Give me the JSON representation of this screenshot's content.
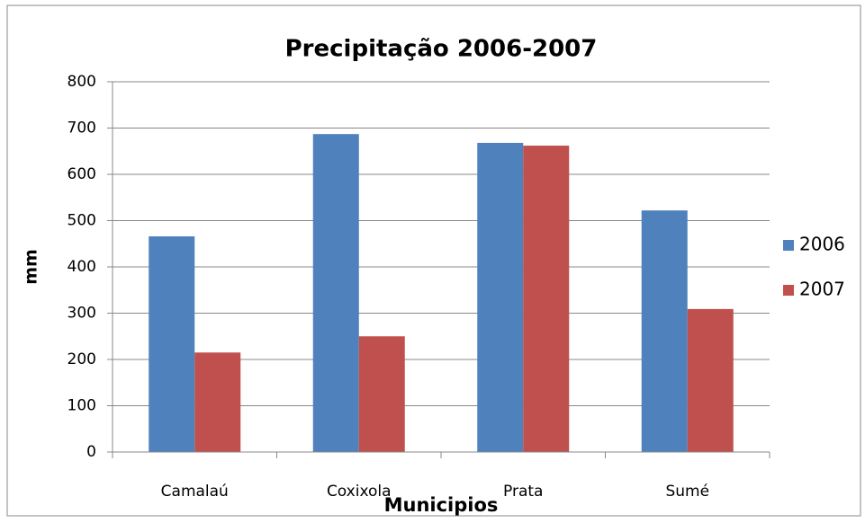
{
  "chart_data": {
    "type": "bar",
    "title": "Precipitação 2006-2007",
    "x_label": "Municipios",
    "y_label": "mm",
    "categories": [
      "Camalaú",
      "Coxixola",
      "Prata",
      "Sumé"
    ],
    "series": [
      {
        "name": "2006",
        "color": "#4f81bd",
        "values": [
          466,
          687,
          668,
          522
        ]
      },
      {
        "name": "2007",
        "color": "#c0504d",
        "values": [
          215,
          250,
          662,
          309
        ]
      }
    ],
    "ylim": [
      0,
      800
    ],
    "yticks": [
      0,
      100,
      200,
      300,
      400,
      500,
      600,
      700,
      800
    ],
    "grid": true,
    "legend": "right"
  }
}
